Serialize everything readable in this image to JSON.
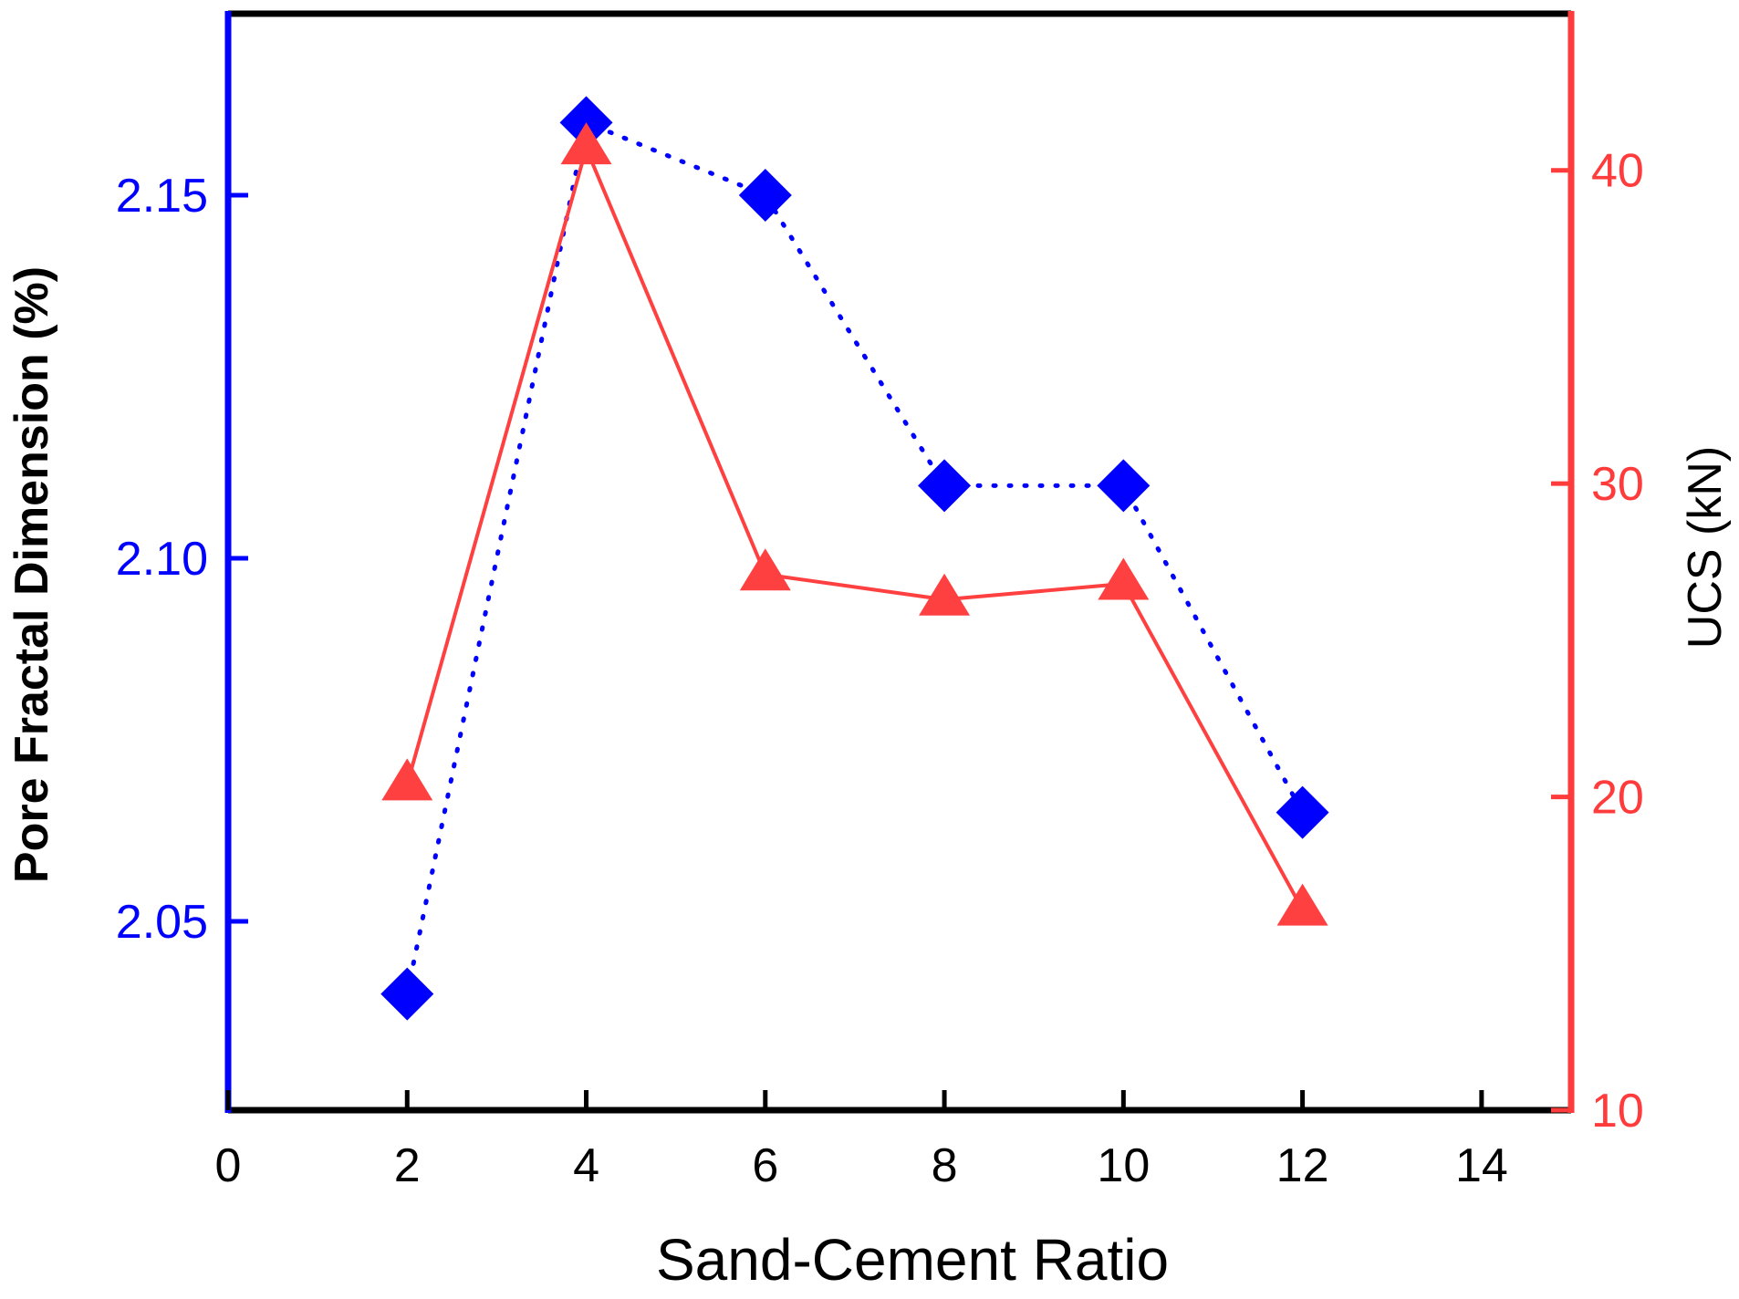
{
  "chart_data": {
    "type": "line",
    "title": "",
    "xlabel": "Sand-Cement Ratio",
    "ylabel_left": "Pore Fractal Dimension (%)",
    "ylabel_right": "UCS (kN)",
    "xlim": [
      0,
      15
    ],
    "ylim_left": [
      2.024,
      2.175
    ],
    "ylim_right": [
      10,
      45
    ],
    "xticks": [
      0,
      2,
      4,
      6,
      8,
      10,
      12,
      14
    ],
    "xtick_labels": [
      "0",
      "2",
      "4",
      "6",
      "8",
      "10",
      "12",
      "14"
    ],
    "yticks_left": [
      2.05,
      2.1,
      2.15
    ],
    "ytick_labels_left": [
      "2.05",
      "2.10",
      "2.15"
    ],
    "yticks_right": [
      10,
      20,
      30,
      40
    ],
    "ytick_labels_right": [
      "10",
      "20",
      "30",
      "40"
    ],
    "grid": false,
    "colors": {
      "left_axis": "#0000ff",
      "right_axis": "#ff3b3b",
      "frame": "#000000"
    },
    "series": [
      {
        "axis": "left",
        "marker": "diamond",
        "line_style": "dotted",
        "color": "#0000ff",
        "x": [
          2,
          4,
          6,
          8,
          10,
          12
        ],
        "y": [
          2.04,
          2.16,
          2.15,
          2.11,
          2.11,
          2.065
        ]
      },
      {
        "axis": "right",
        "marker": "triangle",
        "line_style": "solid",
        "color": "#ff4040",
        "x": [
          2,
          4,
          6,
          8,
          10,
          12
        ],
        "y": [
          20.4,
          40.7,
          27.1,
          26.3,
          26.8,
          16.4
        ]
      }
    ]
  }
}
